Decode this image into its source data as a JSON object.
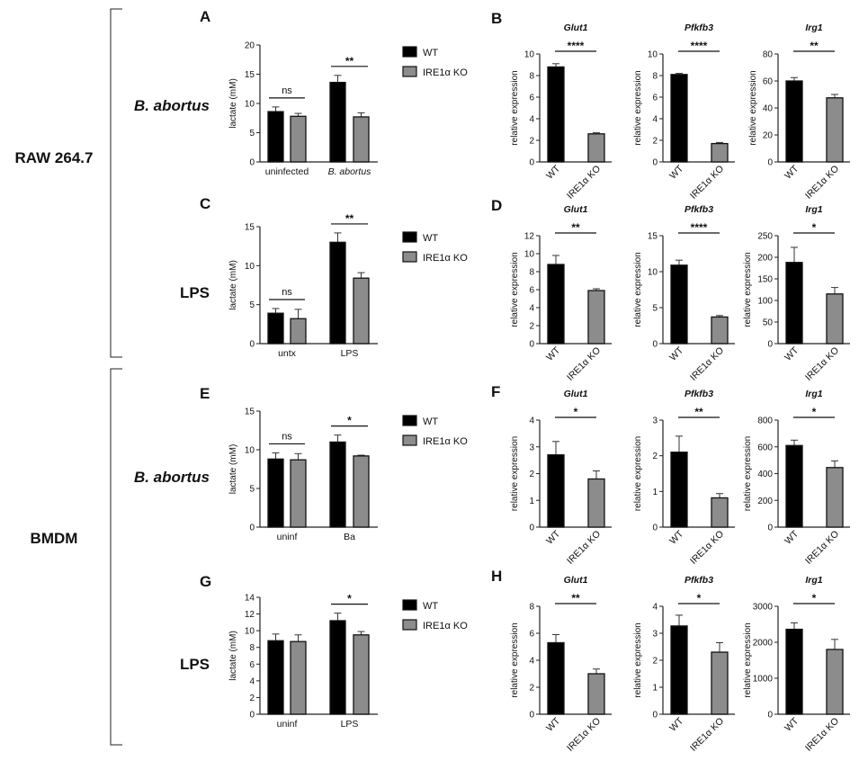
{
  "figure": {
    "cell_lines": [
      "RAW 264.7",
      "BMDM"
    ],
    "row_labels": [
      "B. abortus",
      "LPS",
      "B. abortus",
      "LPS"
    ],
    "panel_letters": [
      "A",
      "B",
      "C",
      "D",
      "E",
      "F",
      "G",
      "H"
    ],
    "legend": [
      {
        "name": "WT",
        "color": "#000000"
      },
      {
        "name": "IRE1α KO",
        "color": "#8c8c8c"
      }
    ]
  },
  "chart_data": [
    {
      "panel": "A",
      "type": "bar",
      "ylabel": "lactate (mM)",
      "ylim": [
        0,
        20
      ],
      "yticks": [
        0,
        5,
        10,
        15,
        20
      ],
      "categories": [
        "uninfected",
        "B. abortus"
      ],
      "series": [
        {
          "name": "WT",
          "values": [
            8.6,
            13.6
          ],
          "errors": [
            0.8,
            1.2
          ]
        },
        {
          "name": "IRE1α KO",
          "values": [
            7.8,
            7.7
          ],
          "errors": [
            0.5,
            0.7
          ]
        }
      ],
      "significance": [
        "ns",
        "**"
      ]
    },
    {
      "panel": "B",
      "type": "bar",
      "title": "Glut1",
      "ylabel": "relative expression",
      "ylim": [
        0,
        10
      ],
      "yticks": [
        0,
        2,
        4,
        6,
        8,
        10
      ],
      "categories": [
        "WT",
        "IRE1α KO"
      ],
      "values": [
        8.8,
        2.6
      ],
      "errors": [
        0.3,
        0.1
      ],
      "significance": [
        "****"
      ]
    },
    {
      "panel": "B",
      "type": "bar",
      "title": "Pfkfb3",
      "ylabel": "relative expression",
      "ylim": [
        0,
        10
      ],
      "yticks": [
        0,
        2,
        4,
        6,
        8,
        10
      ],
      "categories": [
        "WT",
        "IRE1α KO"
      ],
      "values": [
        8.1,
        1.7
      ],
      "errors": [
        0.1,
        0.1
      ],
      "significance": [
        "****"
      ]
    },
    {
      "panel": "B",
      "type": "bar",
      "title": "Irg1",
      "ylabel": "relative expression",
      "ylim": [
        0,
        80
      ],
      "yticks": [
        0,
        20,
        40,
        60,
        80
      ],
      "categories": [
        "WT",
        "IRE1α KO"
      ],
      "values": [
        60,
        47.5
      ],
      "errors": [
        2.5,
        2.5
      ],
      "significance": [
        "**"
      ]
    },
    {
      "panel": "C",
      "type": "bar",
      "ylabel": "lactate (mM)",
      "ylim": [
        0,
        15
      ],
      "yticks": [
        0,
        5,
        10,
        15
      ],
      "categories": [
        "untx",
        "LPS"
      ],
      "series": [
        {
          "name": "WT",
          "values": [
            3.9,
            13.0
          ],
          "errors": [
            0.6,
            1.2
          ]
        },
        {
          "name": "IRE1α KO",
          "values": [
            3.2,
            8.4
          ],
          "errors": [
            1.2,
            0.7
          ]
        }
      ],
      "significance": [
        "ns",
        "**"
      ]
    },
    {
      "panel": "D",
      "type": "bar",
      "title": "Glut1",
      "ylabel": "relative expression",
      "ylim": [
        0,
        12
      ],
      "yticks": [
        0,
        2,
        4,
        6,
        8,
        10,
        12
      ],
      "categories": [
        "WT",
        "IRE1α KO"
      ],
      "values": [
        8.8,
        5.9
      ],
      "errors": [
        1.0,
        0.2
      ],
      "significance": [
        "**"
      ]
    },
    {
      "panel": "D",
      "type": "bar",
      "title": "Pfkfb3",
      "ylabel": "relative expression",
      "ylim": [
        0,
        15
      ],
      "yticks": [
        0,
        5,
        10,
        15
      ],
      "categories": [
        "WT",
        "IRE1α KO"
      ],
      "values": [
        10.9,
        3.7
      ],
      "errors": [
        0.7,
        0.2
      ],
      "significance": [
        "****"
      ]
    },
    {
      "panel": "D",
      "type": "bar",
      "title": "Irg1",
      "ylabel": "relative expression",
      "ylim": [
        0,
        250
      ],
      "yticks": [
        0,
        50,
        100,
        150,
        200,
        250
      ],
      "categories": [
        "WT",
        "IRE1α KO"
      ],
      "values": [
        188,
        115
      ],
      "errors": [
        35,
        15
      ],
      "significance": [
        "*"
      ]
    },
    {
      "panel": "E",
      "type": "bar",
      "ylabel": "lactate (mM)",
      "ylim": [
        0,
        15
      ],
      "yticks": [
        0,
        5,
        10,
        15
      ],
      "categories": [
        "uninf",
        "Ba"
      ],
      "series": [
        {
          "name": "WT",
          "values": [
            8.8,
            11.0
          ],
          "errors": [
            0.8,
            0.9
          ]
        },
        {
          "name": "IRE1α KO",
          "values": [
            8.7,
            9.2
          ],
          "errors": [
            0.8,
            0.1
          ]
        }
      ],
      "significance": [
        "ns",
        "*"
      ]
    },
    {
      "panel": "F",
      "type": "bar",
      "title": "Glut1",
      "ylabel": "relative expression",
      "ylim": [
        0,
        4
      ],
      "yticks": [
        0,
        1,
        2,
        3,
        4
      ],
      "categories": [
        "WT",
        "IRE1α KO"
      ],
      "values": [
        2.7,
        1.8
      ],
      "errors": [
        0.5,
        0.3
      ],
      "significance": [
        "*"
      ]
    },
    {
      "panel": "F",
      "type": "bar",
      "title": "Pfkfb3",
      "ylabel": "relative expression",
      "ylim": [
        0,
        3
      ],
      "yticks": [
        0,
        1,
        2,
        3
      ],
      "categories": [
        "WT",
        "IRE1α KO"
      ],
      "values": [
        2.1,
        0.82
      ],
      "errors": [
        0.45,
        0.12
      ],
      "significance": [
        "**"
      ]
    },
    {
      "panel": "F",
      "type": "bar",
      "title": "Irg1",
      "ylabel": "relative expression",
      "ylim": [
        0,
        800
      ],
      "yticks": [
        0,
        200,
        400,
        600,
        800
      ],
      "categories": [
        "WT",
        "IRE1α KO"
      ],
      "values": [
        610,
        445
      ],
      "errors": [
        40,
        50
      ],
      "significance": [
        "*"
      ]
    },
    {
      "panel": "G",
      "type": "bar",
      "ylabel": "lactate (mM)",
      "ylim": [
        0,
        14
      ],
      "yticks": [
        0,
        2,
        4,
        6,
        8,
        10,
        12,
        14
      ],
      "categories": [
        "uninf",
        "LPS"
      ],
      "series": [
        {
          "name": "WT",
          "values": [
            8.8,
            11.2
          ],
          "errors": [
            0.8,
            0.9
          ]
        },
        {
          "name": "IRE1α KO",
          "values": [
            8.7,
            9.5
          ],
          "errors": [
            0.8,
            0.4
          ]
        }
      ],
      "significance": [
        "",
        "*"
      ]
    },
    {
      "panel": "H",
      "type": "bar",
      "title": "Glut1",
      "ylabel": "relative expression",
      "ylim": [
        0,
        8
      ],
      "yticks": [
        0,
        2,
        4,
        6,
        8
      ],
      "categories": [
        "WT",
        "IRE1α KO"
      ],
      "values": [
        5.3,
        3.0
      ],
      "errors": [
        0.6,
        0.35
      ],
      "significance": [
        "**"
      ]
    },
    {
      "panel": "H",
      "type": "bar",
      "title": "Pfkfb3",
      "ylabel": "relative expression",
      "ylim": [
        0,
        4
      ],
      "yticks": [
        0,
        1,
        2,
        3,
        4
      ],
      "categories": [
        "WT",
        "IRE1α KO"
      ],
      "values": [
        3.27,
        2.3
      ],
      "errors": [
        0.4,
        0.35
      ],
      "significance": [
        "*"
      ]
    },
    {
      "panel": "H",
      "type": "bar",
      "title": "Irg1",
      "ylabel": "relative expression",
      "ylim": [
        0,
        3000
      ],
      "yticks": [
        0,
        1000,
        2000,
        3000
      ],
      "categories": [
        "WT",
        "IRE1α KO"
      ],
      "values": [
        2360,
        1800
      ],
      "errors": [
        180,
        280
      ],
      "significance": [
        "*"
      ]
    }
  ]
}
